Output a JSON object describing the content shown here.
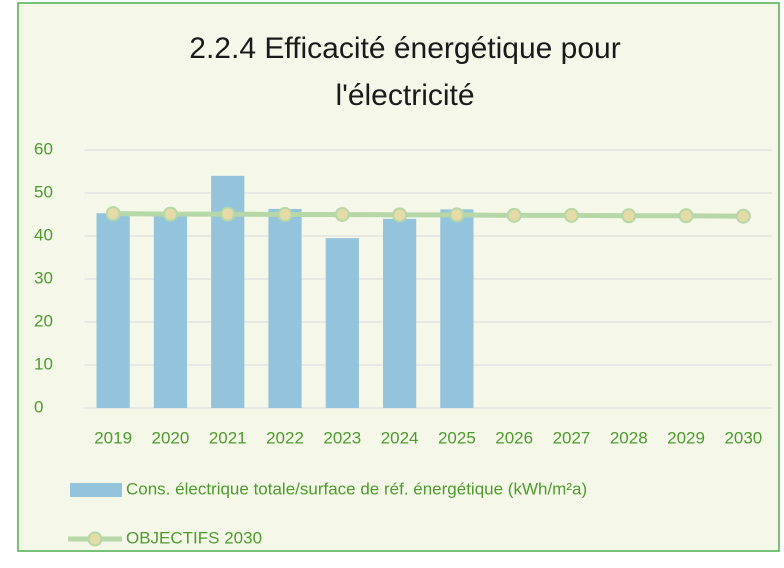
{
  "chart_data": {
    "type": "bar",
    "title": [
      "2.2.4 Efficacité énergétique pour",
      "l'électricité"
    ],
    "categories": [
      "2019",
      "2020",
      "2021",
      "2022",
      "2023",
      "2024",
      "2025",
      "2026",
      "2027",
      "2028",
      "2029",
      "2030"
    ],
    "series": [
      {
        "name": "Cons. électrique totale/surface de réf. énergétique (kWh/m²a)",
        "kind": "bar",
        "color": "#93c4dc",
        "values": [
          45.3,
          45.0,
          54.0,
          46.3,
          39.5,
          44.0,
          46.2,
          null,
          null,
          null,
          null,
          null
        ]
      },
      {
        "name": "OBJECTIFS 2030",
        "kind": "line",
        "color": "#b6d7a8",
        "marker_color": "#e4dba6",
        "values": [
          45.2,
          45.1,
          45.1,
          45.0,
          45.0,
          44.9,
          44.9,
          44.8,
          44.8,
          44.7,
          44.7,
          44.6
        ]
      }
    ],
    "ylim": [
      0,
      60
    ],
    "yticks": [
      0,
      10,
      20,
      30,
      40,
      50,
      60
    ],
    "grid": true,
    "legend": "bottom"
  }
}
